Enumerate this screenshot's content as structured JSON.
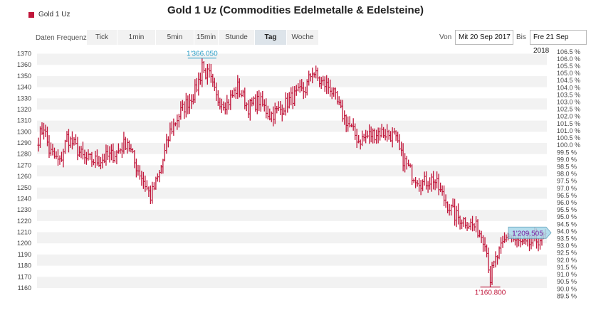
{
  "header": {
    "title": "Gold 1 Uz (Commodities Edelmetalle & Edelsteine)",
    "legend_label": "Gold 1 Uz"
  },
  "controls": {
    "freq_label": "Daten Frequenz",
    "tabs": [
      {
        "label": "Tick",
        "active": false
      },
      {
        "label": "1min",
        "active": false
      },
      {
        "label": "5min",
        "active": false
      },
      {
        "label": "15min",
        "active": false
      },
      {
        "label": "Stunde",
        "active": false
      },
      {
        "label": "Tag",
        "active": true
      },
      {
        "label": "Woche",
        "active": false
      }
    ],
    "von_label": "Von",
    "von_value": "Mit 20 Sep 2017",
    "bis_label": "Bis",
    "bis_value": "Fre 21 Sep 2018"
  },
  "colors": {
    "series": "#c0163a",
    "grid_band": "#f2f2f2",
    "max_label": "#2a9ec7",
    "min_label": "#c0163a",
    "last_label": "#7a1fa2",
    "last_box": "#a8d8ea"
  },
  "chart_data": {
    "type": "ohlc",
    "series_name": "Gold 1 Uz",
    "x_start": "2017-09-20",
    "x_end": "2018-09-21",
    "ylim": [
      1155,
      1375
    ],
    "yticks": [
      1160,
      1170,
      1180,
      1190,
      1200,
      1210,
      1220,
      1230,
      1240,
      1250,
      1260,
      1270,
      1280,
      1290,
      1300,
      1310,
      1320,
      1330,
      1340,
      1350,
      1360,
      1370
    ],
    "right_axis_ticks": [
      "89.5 %",
      "90.0 %",
      "90.5 %",
      "91.0 %",
      "91.5 %",
      "92.0 %",
      "92.5 %",
      "93.0 %",
      "93.5 %",
      "94.0 %",
      "94.5 %",
      "95.0 %",
      "95.5 %",
      "96.0 %",
      "96.5 %",
      "97.0 %",
      "97.5 %",
      "98.0 %",
      "98.5 %",
      "99.0 %",
      "99.5 %",
      "100.0 %",
      "100.5 %",
      "101.0 %",
      "101.5 %",
      "102.0 %",
      "102.5 %",
      "103.0 %",
      "103.5 %",
      "104.0 %",
      "104.5 %",
      "105.0 %",
      "105.5 %",
      "106.0 %",
      "106.5 %"
    ],
    "right_axis_base": 1288.0,
    "anchors": [
      [
        0,
        1294
      ],
      [
        3,
        1305
      ],
      [
        6,
        1283
      ],
      [
        12,
        1272
      ],
      [
        16,
        1295
      ],
      [
        20,
        1288
      ],
      [
        26,
        1275
      ],
      [
        34,
        1274
      ],
      [
        44,
        1281
      ],
      [
        50,
        1292
      ],
      [
        54,
        1272
      ],
      [
        58,
        1260
      ],
      [
        63,
        1242
      ],
      [
        68,
        1262
      ],
      [
        74,
        1300
      ],
      [
        80,
        1318
      ],
      [
        88,
        1336
      ],
      [
        92,
        1355
      ],
      [
        96,
        1350
      ],
      [
        100,
        1330
      ],
      [
        106,
        1325
      ],
      [
        112,
        1340
      ],
      [
        118,
        1322
      ],
      [
        124,
        1328
      ],
      [
        130,
        1315
      ],
      [
        136,
        1320
      ],
      [
        142,
        1330
      ],
      [
        150,
        1338
      ],
      [
        154,
        1355
      ],
      [
        158,
        1345
      ],
      [
        164,
        1340
      ],
      [
        170,
        1318
      ],
      [
        176,
        1302
      ],
      [
        180,
        1292
      ],
      [
        186,
        1297
      ],
      [
        192,
        1300
      ],
      [
        200,
        1296
      ],
      [
        204,
        1278
      ],
      [
        210,
        1262
      ],
      [
        216,
        1254
      ],
      [
        222,
        1258
      ],
      [
        228,
        1240
      ],
      [
        234,
        1225
      ],
      [
        240,
        1220
      ],
      [
        246,
        1214
      ],
      [
        251,
        1203
      ],
      [
        254,
        1170
      ],
      [
        257,
        1185
      ],
      [
        261,
        1198
      ],
      [
        264,
        1208
      ],
      [
        268,
        1202
      ],
      [
        274,
        1198
      ],
      [
        280,
        1203
      ],
      [
        285,
        1206
      ]
    ],
    "max_label": "1'366.050",
    "max_value": 1366.05,
    "max_index": 92,
    "min_label": "1'160.800",
    "min_value": 1160.8,
    "min_index": 254,
    "last_label": "1'209.505",
    "last_value": 1209.505
  }
}
